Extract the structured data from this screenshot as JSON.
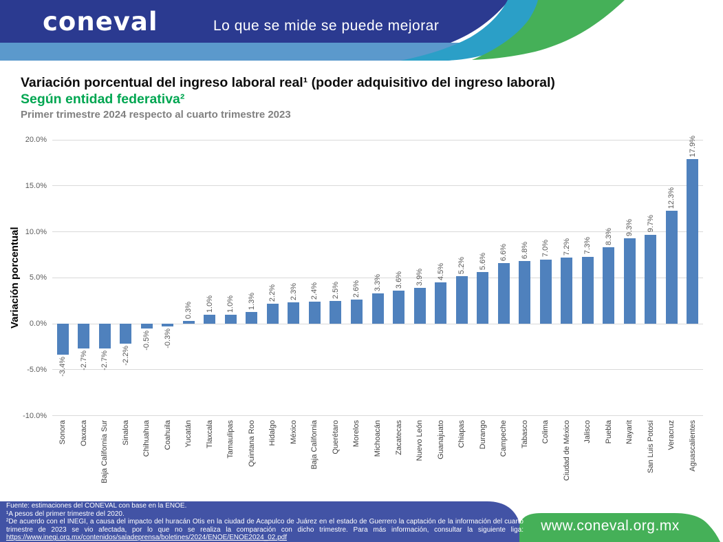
{
  "header": {
    "logo_text": "coneval",
    "tagline": "Lo que se mide se puede mejorar",
    "colors": {
      "dark_blue": "#2b3a90",
      "light_blue": "#5b99cc",
      "teal": "#2b9fc7",
      "green": "#45b058",
      "footer_blue": "#4253a5"
    }
  },
  "titles": {
    "main": "Variación porcentual del ingreso laboral real¹ (poder adquisitivo del ingreso laboral)",
    "subtitle": "Según entidad federativa²",
    "subtitle_color": "#00a651",
    "period": "Primer trimestre 2024 respecto al cuarto trimestre 2023",
    "period_color": "#808080"
  },
  "chart_data": {
    "type": "bar",
    "title": "Variación porcentual del ingreso laboral real (poder adquisitivo del ingreso laboral) según entidad federativa, Primer trimestre 2024 respecto al cuarto trimestre 2023",
    "xlabel": "",
    "ylabel": "Variación porcentual",
    "ylim": [
      -10,
      20
    ],
    "grid": true,
    "legend": "none",
    "bar_color": "#4f81bd",
    "y_ticks": [
      "20.0%",
      "15.0%",
      "10.0%",
      "5.0%",
      "0.0%",
      "-5.0%",
      "-10.0%"
    ],
    "categories": [
      "Sonora",
      "Oaxaca",
      "Baja California Sur",
      "Sinaloa",
      "Chihuahua",
      "Coahuila",
      "Yucatán",
      "Tlaxcala",
      "Tamaulipas",
      "Quintana Roo",
      "Hidalgo",
      "México",
      "Baja California",
      "Querétaro",
      "Morelos",
      "Michoacán",
      "Zacatecas",
      "Nuevo León",
      "Guanajuato",
      "Chiapas",
      "Durango",
      "Campeche",
      "Tabasco",
      "Colima",
      "Ciudad de México",
      "Jalisco",
      "Puebla",
      "Nayarit",
      "San Luis Potosí",
      "Veracruz",
      "Aguascalientes"
    ],
    "values": [
      -3.4,
      -2.7,
      -2.7,
      -2.2,
      -0.5,
      -0.3,
      0.3,
      1.0,
      1.0,
      1.3,
      2.2,
      2.3,
      2.4,
      2.5,
      2.6,
      3.3,
      3.6,
      3.9,
      4.5,
      5.2,
      5.6,
      6.6,
      6.8,
      7.0,
      7.2,
      7.3,
      8.3,
      9.3,
      9.7,
      12.3,
      17.9
    ]
  },
  "footer": {
    "source": "Fuente: estimaciones del CONEVAL con base en la ENOE.",
    "note1": "¹A pesos del primer trimestre del 2020.",
    "note2": "²De acuerdo con el INEGI, a causa del impacto del huracán Otis en la ciudad de Acapulco de Juárez en el estado de Guerrero la captación de la información del cuarto trimestre de 2023 se vio afectada, por lo que no se realiza la comparación con dicho trimestre. Para más información, consultar la siguiente liga:",
    "link": "https://www.inegi.org.mx/contenidos/saladeprensa/boletines/2024/ENOE/ENOE2024_02.pdf",
    "website": "www.coneval.org.mx"
  }
}
